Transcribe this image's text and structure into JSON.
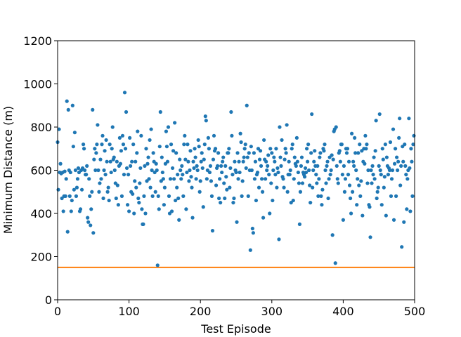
{
  "chart_data": {
    "type": "scatter",
    "xlabel": "Test Episode",
    "ylabel": "Minimum Distance (m)",
    "color": "#1f77b4",
    "reference_line": {
      "value": 150,
      "color": "#ff7f0e"
    },
    "xlim": [
      0,
      500
    ],
    "xticks": [
      0,
      100,
      200,
      300,
      400,
      500
    ],
    "ylim": [
      0,
      1200
    ],
    "yticks": [
      0,
      200,
      400,
      600,
      800,
      1000,
      1200
    ],
    "x": [
      0,
      1,
      2,
      3,
      4,
      5,
      6,
      7,
      8,
      9,
      10,
      11,
      12,
      13,
      14,
      15,
      16,
      17,
      18,
      19,
      20,
      21,
      22,
      23,
      24,
      25,
      26,
      27,
      28,
      29,
      30,
      31,
      32,
      33,
      34,
      35,
      36,
      37,
      38,
      39,
      40,
      41,
      42,
      43,
      44,
      45,
      46,
      47,
      48,
      49,
      50,
      51,
      52,
      53,
      54,
      55,
      56,
      57,
      58,
      59,
      60,
      61,
      62,
      63,
      64,
      65,
      66,
      67,
      68,
      69,
      70,
      71,
      72,
      73,
      74,
      75,
      76,
      77,
      78,
      79,
      80,
      81,
      82,
      83,
      84,
      85,
      86,
      87,
      88,
      89,
      90,
      91,
      92,
      93,
      94,
      95,
      96,
      97,
      98,
      99,
      100,
      101,
      102,
      103,
      104,
      105,
      106,
      107,
      108,
      109,
      110,
      111,
      112,
      113,
      114,
      115,
      116,
      117,
      118,
      119,
      120,
      121,
      122,
      123,
      124,
      125,
      126,
      127,
      128,
      129,
      130,
      131,
      132,
      133,
      134,
      135,
      136,
      137,
      138,
      139,
      140,
      141,
      142,
      143,
      144,
      145,
      146,
      147,
      148,
      149,
      150,
      151,
      152,
      153,
      154,
      155,
      156,
      157,
      158,
      159,
      160,
      161,
      162,
      163,
      164,
      165,
      166,
      167,
      168,
      169,
      170,
      171,
      172,
      173,
      174,
      175,
      176,
      177,
      178,
      179,
      180,
      181,
      182,
      183,
      184,
      185,
      186,
      187,
      188,
      189,
      190,
      191,
      192,
      193,
      194,
      195,
      196,
      197,
      198,
      199,
      200,
      201,
      202,
      203,
      204,
      205,
      206,
      207,
      208,
      209,
      210,
      211,
      212,
      213,
      214,
      215,
      216,
      217,
      218,
      219,
      220,
      221,
      222,
      223,
      224,
      225,
      226,
      227,
      228,
      229,
      230,
      231,
      232,
      233,
      234,
      235,
      236,
      237,
      238,
      239,
      240,
      241,
      242,
      243,
      244,
      245,
      246,
      247,
      248,
      249,
      250,
      251,
      252,
      253,
      254,
      255,
      256,
      257,
      258,
      259,
      260,
      261,
      262,
      263,
      264,
      265,
      266,
      267,
      268,
      269,
      270,
      271,
      272,
      273,
      274,
      275,
      276,
      277,
      278,
      279,
      280,
      281,
      282,
      283,
      284,
      285,
      286,
      287,
      288,
      289,
      290,
      291,
      292,
      293,
      294,
      295,
      296,
      297,
      298,
      299,
      300,
      301,
      302,
      303,
      304,
      305,
      306,
      307,
      308,
      309,
      310,
      311,
      312,
      313,
      314,
      315,
      316,
      317,
      318,
      319,
      320,
      321,
      322,
      323,
      324,
      325,
      326,
      327,
      328,
      329,
      330,
      331,
      332,
      333,
      334,
      335,
      336,
      337,
      338,
      339,
      340,
      341,
      342,
      343,
      344,
      345,
      346,
      347,
      348,
      349,
      350,
      351,
      352,
      353,
      354,
      355,
      356,
      357,
      358,
      359,
      360,
      361,
      362,
      363,
      364,
      365,
      366,
      367,
      368,
      369,
      370,
      371,
      372,
      373,
      374,
      375,
      376,
      377,
      378,
      379,
      380,
      381,
      382,
      383,
      384,
      385,
      386,
      387,
      388,
      389,
      390,
      391,
      392,
      393,
      394,
      395,
      396,
      397,
      398,
      399,
      400,
      401,
      402,
      403,
      404,
      405,
      406,
      407,
      408,
      409,
      410,
      411,
      412,
      413,
      414,
      415,
      416,
      417,
      418,
      419,
      420,
      421,
      422,
      423,
      424,
      425,
      426,
      427,
      428,
      429,
      430,
      431,
      432,
      433,
      434,
      435,
      436,
      437,
      438,
      439,
      440,
      441,
      442,
      443,
      444,
      445,
      446,
      447,
      448,
      449,
      450,
      451,
      452,
      453,
      454,
      455,
      456,
      457,
      458,
      459,
      460,
      461,
      462,
      463,
      464,
      465,
      466,
      467,
      468,
      469,
      470,
      471,
      472,
      473,
      474,
      475,
      476,
      477,
      478,
      479,
      480,
      481,
      482,
      483,
      484,
      485,
      486,
      487,
      488,
      489,
      490,
      491,
      492,
      493,
      494,
      495,
      496,
      497,
      498,
      499
    ],
    "y": [
      730,
      510,
      790,
      590,
      630,
      585,
      470,
      590,
      410,
      480,
      595,
      480,
      560,
      920,
      315,
      880,
      600,
      480,
      590,
      410,
      460,
      900,
      710,
      510,
      775,
      600,
      480,
      520,
      560,
      610,
      590,
      410,
      420,
      600,
      510,
      610,
      720,
      700,
      600,
      580,
      580,
      620,
      380,
      360,
      560,
      480,
      345,
      420,
      500,
      880,
      310,
      650,
      700,
      600,
      680,
      720,
      810,
      600,
      500,
      540,
      650,
      560,
      720,
      760,
      470,
      600,
      690,
      580,
      740,
      640,
      500,
      520,
      460,
      720,
      640,
      590,
      700,
      800,
      650,
      660,
      600,
      540,
      470,
      640,
      530,
      440,
      620,
      750,
      630,
      690,
      480,
      760,
      720,
      580,
      960,
      700,
      870,
      610,
      440,
      580,
      410,
      750,
      620,
      500,
      640,
      490,
      720,
      400,
      550,
      640,
      520,
      680,
      780,
      470,
      450,
      540,
      610,
      760,
      420,
      350,
      350,
      480,
      620,
      400,
      700,
      550,
      630,
      660,
      560,
      740,
      520,
      790,
      600,
      480,
      680,
      640,
      590,
      500,
      630,
      600,
      160,
      480,
      420,
      710,
      870,
      550,
      660,
      590,
      560,
      440,
      520,
      630,
      780,
      710,
      640,
      800,
      480,
      400,
      560,
      720,
      410,
      610,
      690,
      560,
      820,
      460,
      680,
      520,
      580,
      470,
      370,
      650,
      600,
      560,
      620,
      580,
      480,
      720,
      760,
      650,
      420,
      590,
      720,
      640,
      550,
      600,
      690,
      570,
      520,
      380,
      640,
      610,
      700,
      660,
      560,
      620,
      600,
      740,
      710,
      500,
      550,
      640,
      680,
      610,
      430,
      650,
      720,
      850,
      830,
      560,
      600,
      750,
      700,
      590,
      620,
      550,
      480,
      320,
      650,
      760,
      690,
      700,
      530,
      610,
      620,
      680,
      470,
      560,
      450,
      620,
      590,
      640,
      660,
      540,
      470,
      620,
      570,
      510,
      680,
      680,
      700,
      520,
      610,
      870,
      760,
      580,
      450,
      470,
      640,
      600,
      590,
      360,
      680,
      560,
      640,
      590,
      770,
      730,
      480,
      550,
      640,
      660,
      700,
      720,
      610,
      900,
      660,
      480,
      680,
      600,
      230,
      710,
      600,
      330,
      310,
      680,
      560,
      640,
      460,
      580,
      590,
      700,
      520,
      650,
      690,
      620,
      560,
      500,
      380,
      740,
      650,
      560,
      640,
      600,
      620,
      670,
      580,
      400,
      700,
      540,
      680,
      460,
      600,
      660,
      640,
      580,
      700,
      520,
      610,
      590,
      280,
      800,
      660,
      620,
      740,
      570,
      560,
      520,
      650,
      700,
      680,
      810,
      500,
      580,
      640,
      580,
      600,
      450,
      700,
      720,
      460,
      560,
      660,
      630,
      620,
      750,
      640,
      590,
      540,
      350,
      500,
      620,
      660,
      540,
      590,
      580,
      570,
      610,
      590,
      700,
      640,
      720,
      600,
      530,
      450,
      680,
      860,
      520,
      600,
      640,
      690,
      620,
      580,
      540,
      620,
      480,
      560,
      660,
      680,
      480,
      440,
      510,
      700,
      690,
      720,
      600,
      540,
      620,
      640,
      470,
      560,
      660,
      580,
      600,
      670,
      300,
      650,
      780,
      790,
      170,
      800,
      620,
      560,
      540,
      680,
      690,
      640,
      720,
      720,
      580,
      370,
      620,
      500,
      560,
      700,
      680,
      700,
      580,
      640,
      530,
      470,
      400,
      770,
      500,
      640,
      620,
      750,
      680,
      600,
      440,
      560,
      680,
      530,
      720,
      480,
      550,
      690,
      390,
      640,
      700,
      630,
      760,
      700,
      720,
      540,
      600,
      440,
      430,
      290,
      600,
      540,
      620,
      580,
      660,
      560,
      690,
      830,
      470,
      500,
      520,
      620,
      860,
      600,
      580,
      440,
      700,
      650,
      520,
      570,
      720,
      390,
      660,
      620,
      580,
      610,
      600,
      730,
      480,
      560,
      600,
      790,
      370,
      630,
      700,
      480,
      660,
      600,
      640,
      750,
      840,
      530,
      620,
      245,
      710,
      640,
      360,
      720,
      620,
      580,
      420,
      560,
      600,
      840,
      610,
      410,
      700,
      640,
      480,
      720,
      760
    ]
  }
}
